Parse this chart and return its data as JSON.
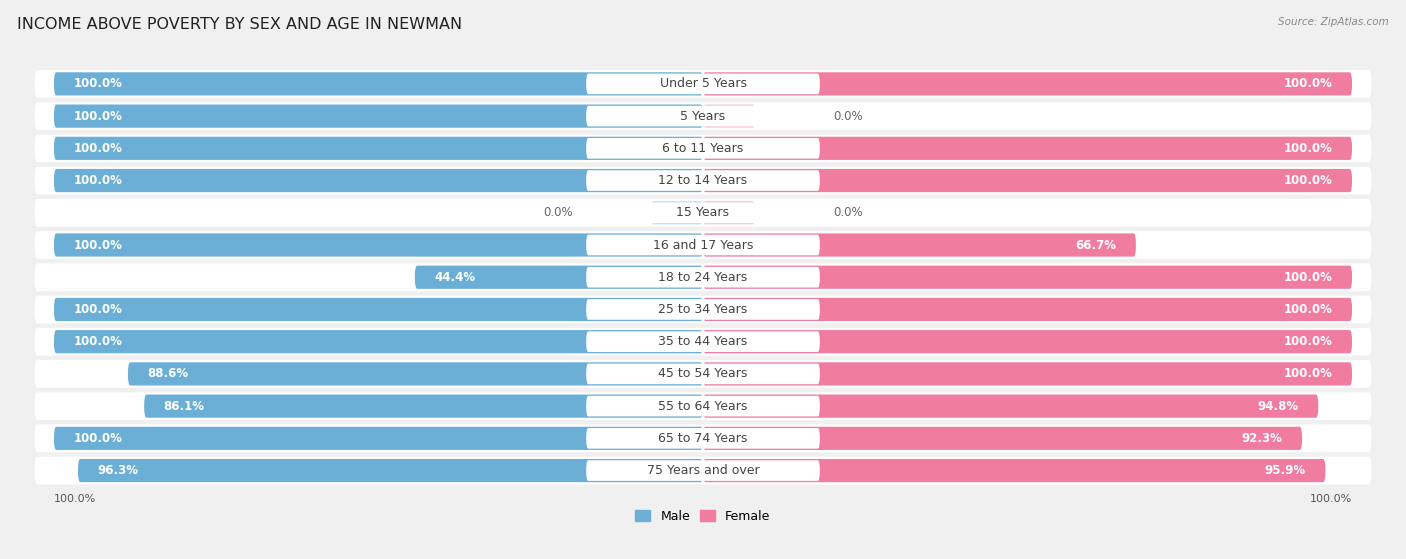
{
  "title": "INCOME ABOVE POVERTY BY SEX AND AGE IN NEWMAN",
  "source": "Source: ZipAtlas.com",
  "categories": [
    "Under 5 Years",
    "5 Years",
    "6 to 11 Years",
    "12 to 14 Years",
    "15 Years",
    "16 and 17 Years",
    "18 to 24 Years",
    "25 to 34 Years",
    "35 to 44 Years",
    "45 to 54 Years",
    "55 to 64 Years",
    "65 to 74 Years",
    "75 Years and over"
  ],
  "male": [
    100.0,
    100.0,
    100.0,
    100.0,
    0.0,
    100.0,
    44.4,
    100.0,
    100.0,
    88.6,
    86.1,
    100.0,
    96.3
  ],
  "female": [
    100.0,
    0.0,
    100.0,
    100.0,
    0.0,
    66.7,
    100.0,
    100.0,
    100.0,
    100.0,
    94.8,
    92.3,
    95.9
  ],
  "male_color": "#6baed6",
  "female_color": "#f07ca0",
  "male_light_color": "#c6dbef",
  "female_light_color": "#fcc5d5",
  "bg_color": "#f0f0f0",
  "row_bg": "#ffffff",
  "row_sep": "#e0e0e0",
  "title_fontsize": 11.5,
  "label_fontsize": 9,
  "value_fontsize": 8.5,
  "axis_label_fontsize": 8,
  "bar_height": 0.72,
  "max_val": 100.0
}
